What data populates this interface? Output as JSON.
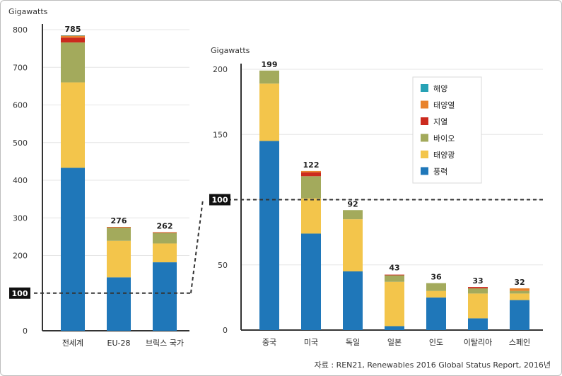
{
  "chart_data": [
    {
      "type": "bar",
      "stacked": true,
      "ylabel": "Gigawatts",
      "ylim": [
        0,
        800
      ],
      "yticks": [
        "0",
        "100",
        "200",
        "300",
        "400",
        "500",
        "600",
        "700",
        "800"
      ],
      "grid": true,
      "categories": [
        "전세계",
        "EU-28",
        "브릭스 국가"
      ],
      "totals": [
        "785",
        "276",
        "262"
      ],
      "series": [
        {
          "name": "풍력",
          "values": [
            433,
            142,
            182
          ]
        },
        {
          "name": "태양광",
          "values": [
            227,
            97,
            50
          ]
        },
        {
          "name": "바이오",
          "values": [
            106,
            35,
            28
          ]
        },
        {
          "name": "지열",
          "values": [
            13,
            1,
            1
          ]
        },
        {
          "name": "태양열",
          "values": [
            5,
            1,
            1
          ]
        },
        {
          "name": "해양",
          "values": [
            1,
            0,
            0
          ]
        }
      ]
    },
    {
      "type": "bar",
      "stacked": true,
      "ylabel": "Gigawatts",
      "ylim": [
        0,
        200
      ],
      "yticks": [
        "0",
        "50",
        "100",
        "150",
        "200"
      ],
      "grid": true,
      "legend_position": "top-right",
      "categories": [
        "중국",
        "미국",
        "독일",
        "일본",
        "인도",
        "이탈리아",
        "스페인"
      ],
      "totals": [
        "199",
        "122",
        "92",
        "43",
        "36",
        "33",
        "32"
      ],
      "series": [
        {
          "name": "풍력",
          "values": [
            145,
            74,
            45,
            3,
            25,
            9,
            23
          ]
        },
        {
          "name": "태양광",
          "values": [
            44,
            27,
            40,
            34,
            5,
            19,
            5
          ]
        },
        {
          "name": "바이오",
          "values": [
            10,
            17,
            7,
            5,
            6,
            4,
            2
          ]
        },
        {
          "name": "지열",
          "values": [
            0,
            3,
            0,
            0.5,
            0,
            1,
            0
          ]
        },
        {
          "name": "태양열",
          "values": [
            0,
            1,
            0,
            0,
            0,
            0,
            2
          ]
        },
        {
          "name": "해양",
          "values": [
            0,
            0,
            0,
            0,
            0,
            0,
            0
          ]
        }
      ]
    }
  ],
  "colors": {
    "풍력": "#1f77b9",
    "태양광": "#f3c54b",
    "바이오": "#a3aa5c",
    "지열": "#cc2a1e",
    "태양열": "#e8822b",
    "해양": "#27a2b5"
  },
  "legend_order": [
    "해양",
    "태양열",
    "지열",
    "바이오",
    "태양광",
    "풍력"
  ],
  "marker_label": "100",
  "source": "자료 : REN21, Renewables 2016 Global Status Report, 2016년"
}
